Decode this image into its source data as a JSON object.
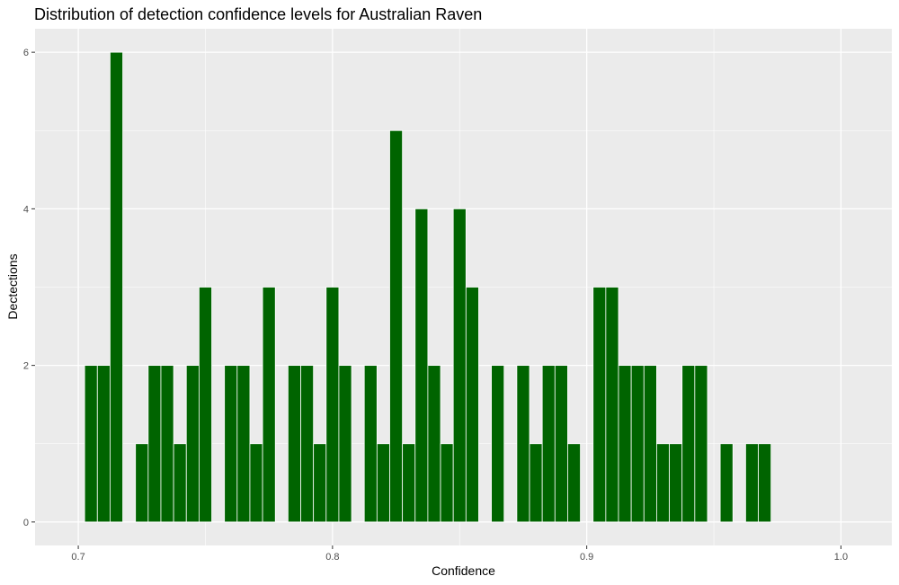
{
  "chart_data": {
    "type": "bar",
    "title": "Distribution of detection confidence levels for Australian Raven",
    "xlabel": "Confidence",
    "ylabel": "Dectections",
    "xlim": [
      0.683,
      1.02
    ],
    "ylim": [
      -0.3,
      6.3
    ],
    "xticks": [
      0.7,
      0.8,
      0.9,
      1.0
    ],
    "xtick_labels": [
      "0.7",
      "0.8",
      "0.9",
      "1.0"
    ],
    "yticks": [
      0,
      2,
      4,
      6
    ],
    "ytick_labels": [
      "0",
      "2",
      "4",
      "6"
    ],
    "bin_width": 0.005,
    "x": [
      0.705,
      0.71,
      0.715,
      0.725,
      0.73,
      0.735,
      0.74,
      0.745,
      0.75,
      0.76,
      0.765,
      0.77,
      0.775,
      0.785,
      0.79,
      0.795,
      0.8,
      0.805,
      0.815,
      0.82,
      0.825,
      0.83,
      0.835,
      0.84,
      0.845,
      0.85,
      0.855,
      0.865,
      0.875,
      0.88,
      0.885,
      0.89,
      0.895,
      0.905,
      0.91,
      0.915,
      0.92,
      0.925,
      0.93,
      0.935,
      0.94,
      0.945,
      0.955,
      0.965,
      0.97
    ],
    "values": [
      2,
      2,
      6,
      1,
      2,
      2,
      1,
      2,
      3,
      2,
      2,
      1,
      3,
      2,
      2,
      1,
      3,
      2,
      2,
      1,
      5,
      1,
      4,
      2,
      1,
      4,
      3,
      2,
      2,
      1,
      2,
      2,
      1,
      3,
      3,
      2,
      2,
      2,
      1,
      1,
      2,
      2,
      1,
      1,
      1
    ],
    "grid": true,
    "colors": {
      "bar_fill": "#006400",
      "bar_stroke": "#ffffff",
      "panel_background": "#ebebeb",
      "grid_major": "#ffffff",
      "tick_text": "#4d4d4d",
      "tick_mark": "#333333"
    }
  }
}
